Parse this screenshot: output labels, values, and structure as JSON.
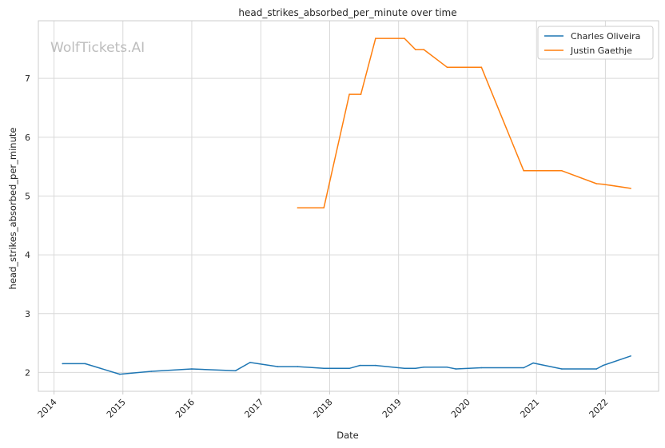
{
  "chart_data": {
    "type": "line",
    "title": "head_strikes_absorbed_per_minute over time",
    "xlabel": "Date",
    "ylabel": "head_strikes_absorbed_per_minute",
    "x_ticks": [
      "2014",
      "2015",
      "2016",
      "2017",
      "2018",
      "2019",
      "2020",
      "2021",
      "2022"
    ],
    "y_ticks": [
      "2",
      "3",
      "4",
      "5",
      "6",
      "7"
    ],
    "xlim": [
      "2013-10-10",
      "2022-10-10"
    ],
    "ylim": [
      1.68,
      7.98
    ],
    "grid": true,
    "legend_position": "top-right",
    "watermark": "WolfTickets.AI",
    "series": [
      {
        "name": "Charles Oliveira",
        "color": "#1f77b4",
        "points": [
          [
            "2014-02-15",
            2.15
          ],
          [
            "2014-06-15",
            2.15
          ],
          [
            "2014-12-15",
            1.97
          ],
          [
            "2015-06-01",
            2.02
          ],
          [
            "2016-01-01",
            2.06
          ],
          [
            "2016-08-20",
            2.03
          ],
          [
            "2016-11-05",
            2.17
          ],
          [
            "2017-04-01",
            2.1
          ],
          [
            "2017-07-15",
            2.1
          ],
          [
            "2017-12-01",
            2.07
          ],
          [
            "2018-04-15",
            2.07
          ],
          [
            "2018-06-10",
            2.12
          ],
          [
            "2018-09-01",
            2.12
          ],
          [
            "2019-02-01",
            2.07
          ],
          [
            "2019-04-01",
            2.07
          ],
          [
            "2019-05-15",
            2.09
          ],
          [
            "2019-09-15",
            2.09
          ],
          [
            "2019-11-01",
            2.06
          ],
          [
            "2020-03-15",
            2.08
          ],
          [
            "2020-10-25",
            2.08
          ],
          [
            "2020-12-15",
            2.16
          ],
          [
            "2021-05-15",
            2.06
          ],
          [
            "2021-11-15",
            2.06
          ],
          [
            "2021-12-20",
            2.12
          ],
          [
            "2022-05-15",
            2.28
          ]
        ]
      },
      {
        "name": "Justin Gaethje",
        "color": "#ff7f0e",
        "points": [
          [
            "2017-07-15",
            4.8
          ],
          [
            "2017-12-01",
            4.8
          ],
          [
            "2018-04-15",
            6.73
          ],
          [
            "2018-06-15",
            6.73
          ],
          [
            "2018-09-01",
            7.68
          ],
          [
            "2019-02-01",
            7.68
          ],
          [
            "2019-04-01",
            7.49
          ],
          [
            "2019-05-15",
            7.49
          ],
          [
            "2019-09-15",
            7.19
          ],
          [
            "2020-03-15",
            7.19
          ],
          [
            "2020-10-25",
            5.43
          ],
          [
            "2021-05-15",
            5.43
          ],
          [
            "2021-11-15",
            5.21
          ],
          [
            "2021-12-20",
            5.2
          ],
          [
            "2022-05-15",
            5.13
          ]
        ]
      }
    ]
  }
}
